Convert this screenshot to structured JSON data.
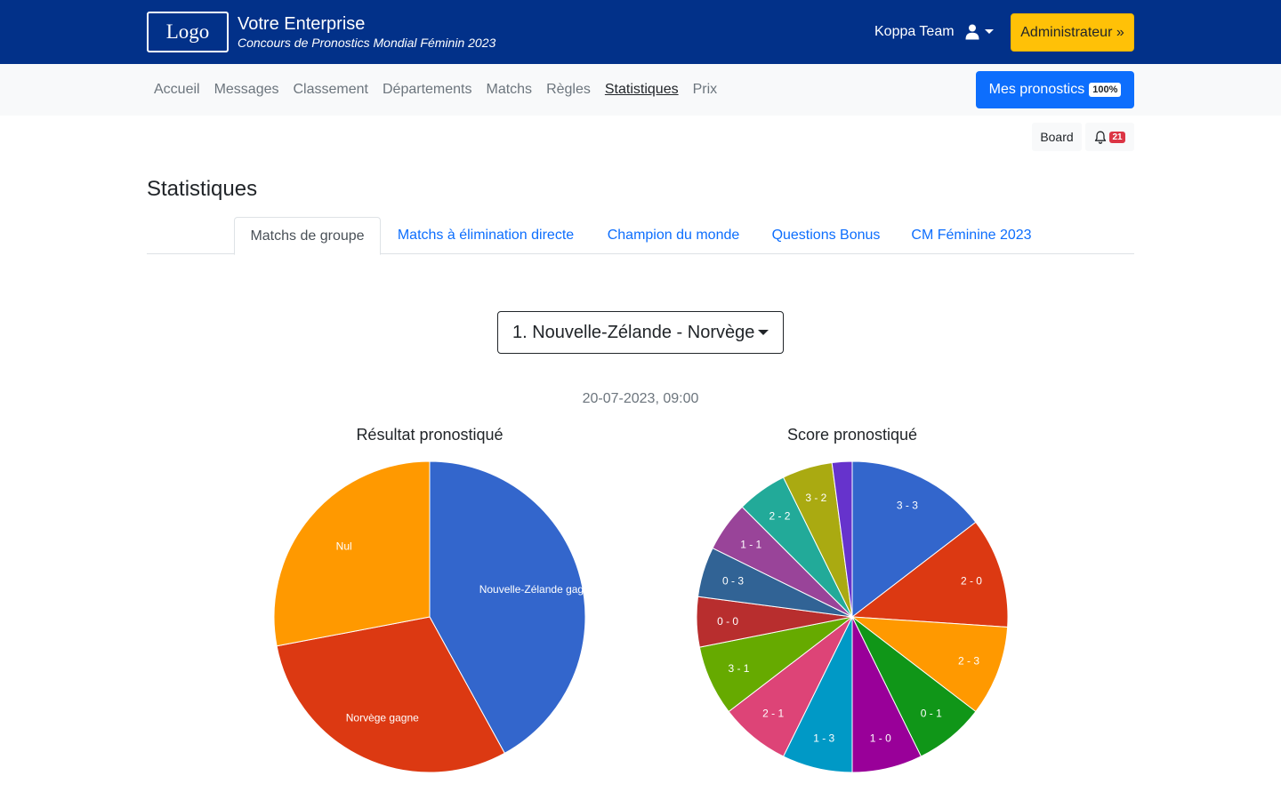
{
  "header": {
    "logo": "Logo",
    "brand_title": "Votre Enterprise",
    "brand_subtitle": "Concours de Pronostics Mondial Féminin 2023",
    "team_name": "Koppa Team",
    "user_icon": "user-icon",
    "admin_button": "Administrateur »"
  },
  "nav": {
    "links": [
      "Accueil",
      "Messages",
      "Classement",
      "Départements",
      "Matchs",
      "Règles",
      "Statistiques",
      "Prix"
    ],
    "active": "Statistiques",
    "mes_pronostics_label": "Mes pronostics",
    "mes_pronostics_badge": "100%"
  },
  "toolbar": {
    "board_label": "Board",
    "notifications_count": "21"
  },
  "page": {
    "title": "Statistiques",
    "tabs": [
      "Matchs de groupe",
      "Matchs à élimination directe",
      "Champion du monde",
      "Questions Bonus",
      "CM Féminine 2023"
    ],
    "active_tab": "Matchs de groupe",
    "match_select_value": "1. Nouvelle-Zélande - Norvège",
    "match_date": "20-07-2023, 09:00"
  },
  "chart_data": [
    {
      "type": "pie",
      "title": "Résultat pronostiqué",
      "slices": [
        {
          "label": "Nouvelle-Zélande gagne",
          "value": 42,
          "color": "#3366cc"
        },
        {
          "label": "Norvège gagne",
          "value": 30,
          "color": "#dc3912"
        },
        {
          "label": "Nul",
          "value": 28,
          "color": "#ff9900"
        }
      ]
    },
    {
      "type": "pie",
      "title": "Score pronostiqué",
      "slices": [
        {
          "label": "3 - 3",
          "value": 14,
          "color": "#3366cc"
        },
        {
          "label": "2 - 0",
          "value": 11,
          "color": "#dc3912"
        },
        {
          "label": "2 - 3",
          "value": 9,
          "color": "#ff9900"
        },
        {
          "label": "0 - 1",
          "value": 7,
          "color": "#109618"
        },
        {
          "label": "1 - 0",
          "value": 7,
          "color": "#990099"
        },
        {
          "label": "1 - 3",
          "value": 7,
          "color": "#0099c6"
        },
        {
          "label": "2 - 1",
          "value": 7,
          "color": "#dd4477"
        },
        {
          "label": "3 - 1",
          "value": 7,
          "color": "#66aa00"
        },
        {
          "label": "0 - 0",
          "value": 5,
          "color": "#b82e2e"
        },
        {
          "label": "0 - 3",
          "value": 5,
          "color": "#316395"
        },
        {
          "label": "1 - 1",
          "value": 5,
          "color": "#994499"
        },
        {
          "label": "2 - 2",
          "value": 5,
          "color": "#22aa99"
        },
        {
          "label": "3 - 2",
          "value": 5,
          "color": "#aaaa11"
        },
        {
          "label": "",
          "value": 2,
          "color": "#6633cc"
        }
      ]
    }
  ]
}
